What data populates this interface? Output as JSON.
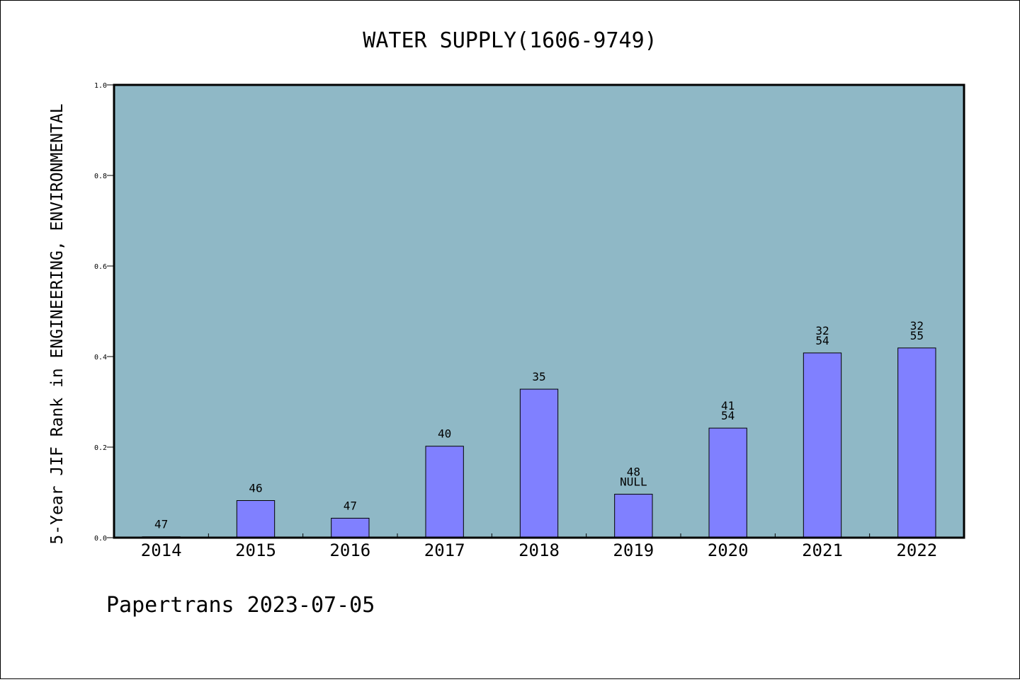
{
  "chart_data": {
    "type": "bar",
    "title": "WATER SUPPLY(1606-9749)",
    "xlabel": "",
    "ylabel": "5-Year JIF Rank in ENGINEERING, ENVIRONMENTAL",
    "categories": [
      "2014",
      "2015",
      "2016",
      "2017",
      "2018",
      "2019",
      "2020",
      "2021",
      "2022"
    ],
    "values": [
      0.002,
      0.082,
      0.043,
      0.202,
      0.328,
      0.096,
      0.242,
      0.408,
      0.419
    ],
    "bar_labels": [
      [
        "47"
      ],
      [
        "46"
      ],
      [
        "47"
      ],
      [
        "40"
      ],
      [
        "35"
      ],
      [
        "48",
        "NULL"
      ],
      [
        "41",
        "54"
      ],
      [
        "32",
        "54"
      ],
      [
        "32",
        "55"
      ]
    ],
    "ylim": [
      0,
      1.0
    ],
    "yticks": [
      "0.0",
      "0.2",
      "0.4",
      "0.6",
      "0.8",
      "1.0"
    ],
    "grid": false,
    "legend": "none",
    "colors": {
      "plot_background": "#8fb8c6",
      "bar_fill": "#8080ff",
      "bar_edge": "#000000"
    }
  },
  "footer": {
    "credit": "Papertrans 2023-07-05"
  }
}
